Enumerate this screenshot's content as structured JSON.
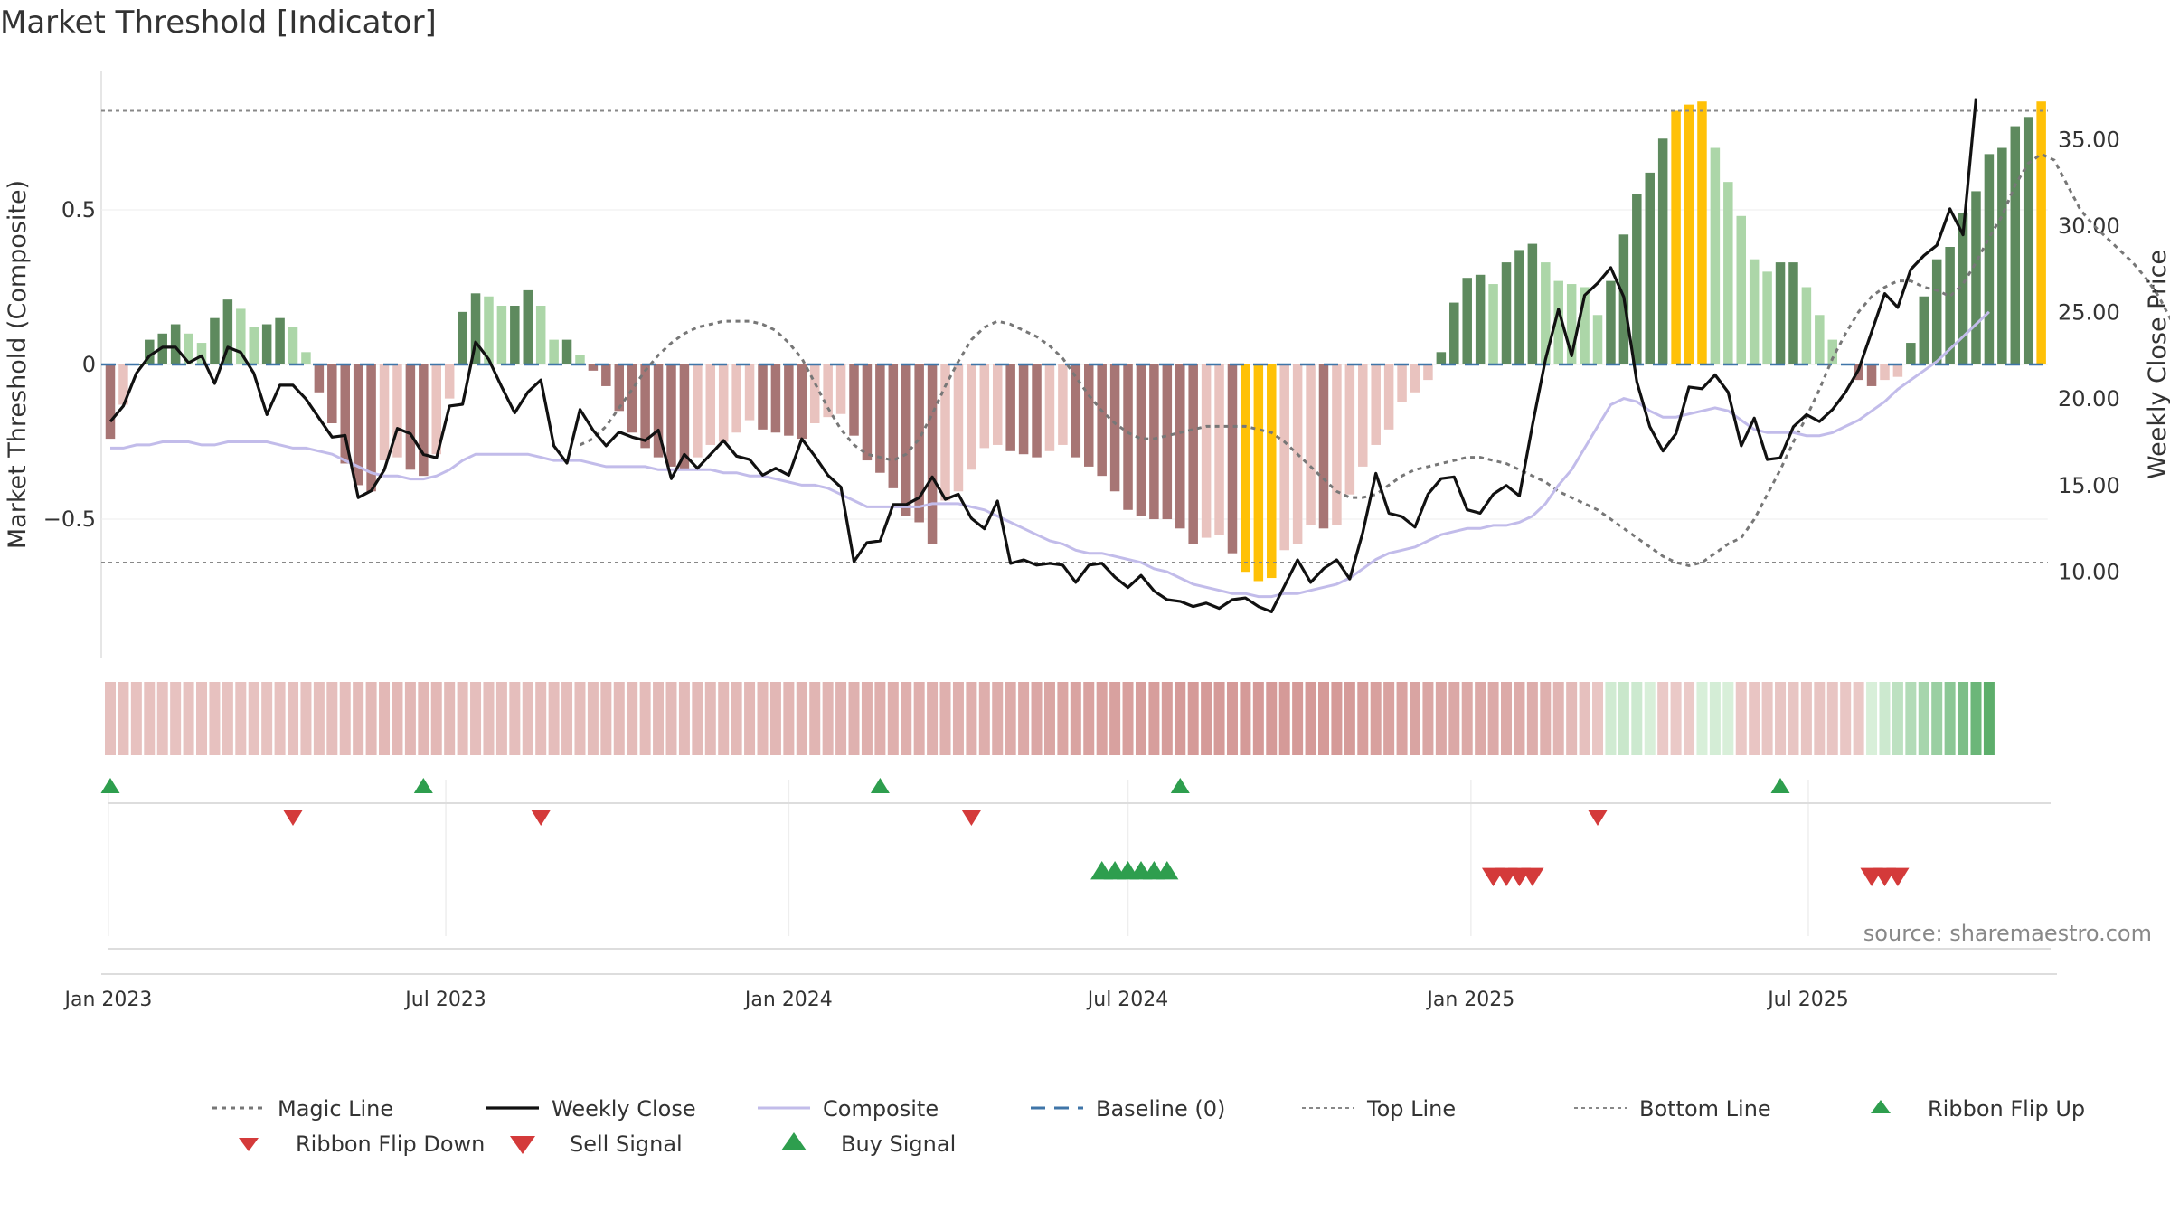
{
  "chart_data": {
    "type": "bar",
    "title": "Market Threshold [Indicator]",
    "ylabel_left": "Market Threshold (Composite)",
    "ylabel_right": "Weekly Close Price",
    "source": "source: sharemaestro.com",
    "ylim_left": [
      -0.95,
      0.95
    ],
    "ylim_right": [
      5.0,
      39.0
    ],
    "yticks_left": [
      {
        "v": 0.5,
        "label": "0.5"
      },
      {
        "v": 0,
        "label": "0"
      },
      {
        "v": -0.5,
        "label": "−0.5"
      }
    ],
    "yticks_right": [
      {
        "v": 35,
        "label": "35.00"
      },
      {
        "v": 30,
        "label": "30.00"
      },
      {
        "v": 25,
        "label": "25.00"
      },
      {
        "v": 20,
        "label": "20.00"
      },
      {
        "v": 15,
        "label": "15.00"
      },
      {
        "v": 10,
        "label": "10.00"
      }
    ],
    "x_dates": [
      "2023-01-02",
      "2023-01-09",
      "2023-01-16",
      "2023-01-23",
      "2023-01-30",
      "2023-02-06",
      "2023-02-13",
      "2023-02-20",
      "2023-02-27",
      "2023-03-06",
      "2023-03-13",
      "2023-03-20",
      "2023-03-27",
      "2023-04-03",
      "2023-04-10",
      "2023-04-17",
      "2023-04-24",
      "2023-05-01",
      "2023-05-08",
      "2023-05-15",
      "2023-05-22",
      "2023-05-29",
      "2023-06-05",
      "2023-06-12",
      "2023-06-19",
      "2023-06-26",
      "2023-07-03",
      "2023-07-10",
      "2023-07-17",
      "2023-07-24",
      "2023-07-31",
      "2023-08-07",
      "2023-08-14",
      "2023-08-21",
      "2023-08-28",
      "2023-09-04",
      "2023-09-11",
      "2023-09-18",
      "2023-09-25",
      "2023-10-02",
      "2023-10-09",
      "2023-10-16",
      "2023-10-23",
      "2023-10-30",
      "2023-11-06",
      "2023-11-13",
      "2023-11-20",
      "2023-11-27",
      "2023-12-04",
      "2023-12-11",
      "2023-12-18",
      "2023-12-25",
      "2024-01-01",
      "2024-01-08",
      "2024-01-15",
      "2024-01-22",
      "2024-01-29",
      "2024-02-05",
      "2024-02-12",
      "2024-02-19",
      "2024-02-26",
      "2024-03-04",
      "2024-03-11",
      "2024-03-18",
      "2024-03-25",
      "2024-04-01",
      "2024-04-08",
      "2024-04-15",
      "2024-04-22",
      "2024-04-29",
      "2024-05-06",
      "2024-05-13",
      "2024-05-20",
      "2024-05-27",
      "2024-06-03",
      "2024-06-10",
      "2024-06-17",
      "2024-06-24",
      "2024-07-01",
      "2024-07-08",
      "2024-07-15",
      "2024-07-22",
      "2024-07-29",
      "2024-08-05",
      "2024-08-12",
      "2024-08-19",
      "2024-08-26",
      "2024-09-02",
      "2024-09-09",
      "2024-09-16",
      "2024-09-23",
      "2024-09-30",
      "2024-10-07",
      "2024-10-14",
      "2024-10-21",
      "2024-10-28",
      "2024-11-04",
      "2024-11-11",
      "2024-11-18",
      "2024-11-25",
      "2024-12-02",
      "2024-12-09",
      "2024-12-16",
      "2024-12-23",
      "2024-12-30",
      "2025-01-06",
      "2025-01-13",
      "2025-01-20",
      "2025-01-27",
      "2025-02-03",
      "2025-02-10",
      "2025-02-17",
      "2025-02-24",
      "2025-03-03",
      "2025-03-10",
      "2025-03-17",
      "2025-03-24",
      "2025-03-31",
      "2025-04-07",
      "2025-04-14",
      "2025-04-21",
      "2025-04-28",
      "2025-05-05",
      "2025-05-12",
      "2025-05-19",
      "2025-05-26",
      "2025-06-02",
      "2025-06-09",
      "2025-06-16",
      "2025-06-23",
      "2025-06-30",
      "2025-07-07",
      "2025-07-14",
      "2025-07-21",
      "2025-07-28",
      "2025-08-04",
      "2025-08-11",
      "2025-08-18",
      "2025-08-25",
      "2025-09-01",
      "2025-09-08",
      "2025-09-15",
      "2025-09-22",
      "2025-09-29"
    ],
    "x_ticks": [
      {
        "date": "2023-01-01",
        "label": "Jan 2023"
      },
      {
        "date": "2023-07-01",
        "label": "Jul 2023"
      },
      {
        "date": "2024-01-01",
        "label": "Jan 2024"
      },
      {
        "date": "2024-07-01",
        "label": "Jul 2024"
      },
      {
        "date": "2025-01-01",
        "label": "Jan 2025"
      },
      {
        "date": "2025-07-01",
        "label": "Jul 2025"
      }
    ],
    "composite_bars": [
      -0.24,
      -0.13,
      0.0,
      0.08,
      0.1,
      0.13,
      0.1,
      0.07,
      0.15,
      0.21,
      0.18,
      0.12,
      0.13,
      0.15,
      0.12,
      0.04,
      -0.09,
      -0.19,
      -0.32,
      -0.39,
      -0.41,
      -0.31,
      -0.3,
      -0.34,
      -0.36,
      -0.29,
      -0.11,
      0.17,
      0.23,
      0.22,
      0.19,
      0.19,
      0.24,
      0.19,
      0.08,
      0.08,
      0.03,
      -0.02,
      -0.07,
      -0.15,
      -0.22,
      -0.27,
      -0.3,
      -0.33,
      -0.34,
      -0.3,
      -0.26,
      -0.25,
      -0.22,
      -0.18,
      -0.21,
      -0.22,
      -0.23,
      -0.24,
      -0.19,
      -0.17,
      -0.16,
      -0.23,
      -0.31,
      -0.35,
      -0.4,
      -0.49,
      -0.51,
      -0.58,
      -0.44,
      -0.41,
      -0.34,
      -0.27,
      -0.26,
      -0.28,
      -0.29,
      -0.3,
      -0.28,
      -0.26,
      -0.3,
      -0.33,
      -0.36,
      -0.41,
      -0.47,
      -0.49,
      -0.5,
      -0.5,
      -0.53,
      -0.58,
      -0.56,
      -0.55,
      -0.61,
      -0.67,
      -0.7,
      -0.69,
      -0.6,
      -0.58,
      -0.52,
      -0.53,
      -0.52,
      -0.42,
      -0.33,
      -0.26,
      -0.21,
      -0.12,
      -0.09,
      -0.05,
      0.04,
      0.2,
      0.28,
      0.29,
      0.26,
      0.33,
      0.37,
      0.39,
      0.33,
      0.27,
      0.26,
      0.25,
      0.16,
      0.27,
      0.42,
      0.55,
      0.62,
      0.73,
      0.82,
      0.84,
      0.85,
      0.7,
      0.59,
      0.48,
      0.34,
      0.3,
      0.33,
      0.33,
      0.25,
      0.16,
      0.08,
      0.0,
      -0.05,
      -0.07,
      -0.05,
      -0.04,
      0.07,
      0.22,
      0.34,
      0.38,
      0.49,
      0.56,
      0.68,
      0.7,
      0.77,
      0.8,
      0.85
    ],
    "weekly_close": [
      18.7,
      19.6,
      21.5,
      22.5,
      23.0,
      23.0,
      22.1,
      22.5,
      20.9,
      23.0,
      22.7,
      21.5,
      19.1,
      20.8,
      20.8,
      20.0,
      18.9,
      17.8,
      17.9,
      14.3,
      14.7,
      15.9,
      18.3,
      18.0,
      16.8,
      16.6,
      19.6,
      19.7,
      23.3,
      22.3,
      20.7,
      19.2,
      20.4,
      21.1,
      17.3,
      16.3,
      19.4,
      18.2,
      17.3,
      18.1,
      17.8,
      17.6,
      18.2,
      15.4,
      16.8,
      16.0,
      16.8,
      17.6,
      16.7,
      16.5,
      15.6,
      16.0,
      15.6,
      17.7,
      16.7,
      15.6,
      14.9,
      10.6,
      11.7,
      11.8,
      13.9,
      13.9,
      14.3,
      15.5,
      14.2,
      14.5,
      13.1,
      12.5,
      14.1,
      10.5,
      10.7,
      10.4,
      10.5,
      10.4,
      9.4,
      10.4,
      10.5,
      9.7,
      9.1,
      9.8,
      8.9,
      8.4,
      8.3,
      8.0,
      8.2,
      7.9,
      8.4,
      8.5,
      8.0,
      7.7,
      9.2,
      10.7,
      9.4,
      10.2,
      10.7,
      9.6,
      12.3,
      15.7,
      13.4,
      13.2,
      12.6,
      14.5,
      15.4,
      15.5,
      13.6,
      13.4,
      14.5,
      15.0,
      14.4,
      18.5,
      22.3,
      25.2,
      22.5,
      26.0,
      26.7,
      27.6,
      25.9,
      21.0,
      18.4,
      17.0,
      18.0,
      20.7,
      20.6,
      21.4,
      20.4,
      17.3,
      18.9,
      16.5,
      16.6,
      18.4,
      19.1,
      18.7,
      19.4,
      20.4,
      21.7,
      23.9,
      26.1,
      25.3,
      27.5,
      28.3,
      28.9,
      31.0,
      29.5,
      37.4
    ],
    "composite_line": [
      -0.27,
      -0.27,
      -0.26,
      -0.26,
      -0.25,
      -0.25,
      -0.25,
      -0.26,
      -0.26,
      -0.25,
      -0.25,
      -0.25,
      -0.25,
      -0.26,
      -0.27,
      -0.27,
      -0.28,
      -0.29,
      -0.31,
      -0.33,
      -0.35,
      -0.36,
      -0.36,
      -0.37,
      -0.37,
      -0.36,
      -0.34,
      -0.31,
      -0.29,
      -0.29,
      -0.29,
      -0.29,
      -0.29,
      -0.3,
      -0.31,
      -0.31,
      -0.31,
      -0.32,
      -0.33,
      -0.33,
      -0.33,
      -0.33,
      -0.34,
      -0.34,
      -0.34,
      -0.34,
      -0.34,
      -0.35,
      -0.35,
      -0.36,
      -0.36,
      -0.37,
      -0.38,
      -0.39,
      -0.39,
      -0.4,
      -0.42,
      -0.44,
      -0.46,
      -0.46,
      -0.46,
      -0.46,
      -0.46,
      -0.45,
      -0.45,
      -0.45,
      -0.46,
      -0.47,
      -0.49,
      -0.51,
      -0.53,
      -0.55,
      -0.57,
      -0.58,
      -0.6,
      -0.61,
      -0.61,
      -0.62,
      -0.63,
      -0.64,
      -0.66,
      -0.67,
      -0.69,
      -0.71,
      -0.72,
      -0.73,
      -0.74,
      -0.74,
      -0.75,
      -0.75,
      -0.74,
      -0.74,
      -0.73,
      -0.72,
      -0.71,
      -0.69,
      -0.66,
      -0.63,
      -0.61,
      -0.6,
      -0.59,
      -0.57,
      -0.55,
      -0.54,
      -0.53,
      -0.53,
      -0.52,
      -0.52,
      -0.51,
      -0.49,
      -0.45,
      -0.39,
      -0.34,
      -0.27,
      -0.2,
      -0.13,
      -0.11,
      -0.12,
      -0.15,
      -0.17,
      -0.17,
      -0.16,
      -0.15,
      -0.14,
      -0.15,
      -0.18,
      -0.21,
      -0.22,
      -0.22,
      -0.22,
      -0.23,
      -0.23,
      -0.22,
      -0.2,
      -0.18,
      -0.15,
      -0.12,
      -0.08,
      -0.05,
      -0.02,
      0.01,
      0.05,
      0.09,
      0.13,
      0.17
    ],
    "magic_line": [
      -0.26,
      -0.24,
      -0.2,
      -0.14,
      -0.08,
      -0.02,
      0.03,
      0.07,
      0.1,
      0.12,
      0.13,
      0.14,
      0.14,
      0.14,
      0.13,
      0.11,
      0.07,
      0.02,
      -0.06,
      -0.14,
      -0.21,
      -0.26,
      -0.29,
      -0.3,
      -0.31,
      -0.29,
      -0.24,
      -0.16,
      -0.07,
      0.01,
      0.08,
      0.12,
      0.14,
      0.13,
      0.11,
      0.09,
      0.06,
      0.02,
      -0.04,
      -0.1,
      -0.15,
      -0.19,
      -0.22,
      -0.24,
      -0.24,
      -0.23,
      -0.22,
      -0.21,
      -0.2,
      -0.2,
      -0.2,
      -0.2,
      -0.21,
      -0.22,
      -0.25,
      -0.29,
      -0.33,
      -0.37,
      -0.41,
      -0.43,
      -0.43,
      -0.42,
      -0.39,
      -0.36,
      -0.34,
      -0.33,
      -0.32,
      -0.31,
      -0.3,
      -0.3,
      -0.31,
      -0.32,
      -0.34,
      -0.36,
      -0.38,
      -0.41,
      -0.43,
      -0.45,
      -0.47,
      -0.5,
      -0.53,
      -0.56,
      -0.59,
      -0.62,
      -0.64,
      -0.65,
      -0.64,
      -0.61,
      -0.58,
      -0.56,
      -0.5,
      -0.42,
      -0.34,
      -0.25,
      -0.17,
      -0.08,
      0.02,
      0.1,
      0.17,
      0.22,
      0.25,
      0.27,
      0.27,
      0.25,
      0.24,
      0.22,
      0.26,
      0.33,
      0.41,
      0.48,
      0.58,
      0.65,
      0.68,
      0.66,
      0.58,
      0.5,
      0.45,
      0.41,
      0.37,
      0.33,
      0.28,
      0.22,
      0.14,
      0.07,
      0.03,
      0.02,
      0.04,
      0.09,
      0.17,
      0.25,
      0.33,
      0.42,
      0.49,
      0.56,
      0.63
    ],
    "magic_line_start": 36,
    "top_line": 0.82,
    "bottom_line": -0.64,
    "baseline": 0,
    "colors": {
      "bar_green_dark": "#5e8a5e",
      "bar_green_light": "#acd6a8",
      "bar_red_dark": "#a77574",
      "bar_red_light": "#e9c3bf",
      "bar_highlight": "#ffc107",
      "weekly_close": "#111111",
      "composite_line": "#c2bcea",
      "magic_line": "#777777",
      "baseline": "#3f75a8",
      "threshold_lines": "#888888",
      "signal_up": "#2e9e4e",
      "signal_down": "#d43a3a"
    },
    "ribbon_flip_up_weeks": [
      0,
      24,
      59,
      82,
      128
    ],
    "ribbon_flip_down_weeks": [
      14,
      33,
      66,
      114
    ],
    "buy_signal_weeks": [
      76,
      77,
      78,
      79,
      80,
      81
    ],
    "sell_signal_weeks": [
      106,
      107,
      108,
      109,
      135,
      136,
      137
    ],
    "legend": [
      {
        "label": "Magic Line",
        "style": "dotted"
      },
      {
        "label": "Weekly Close",
        "style": "solid-black"
      },
      {
        "label": "Composite",
        "style": "solid-lavender"
      },
      {
        "label": "Baseline (0)",
        "style": "dashed-blue"
      },
      {
        "label": "Top Line",
        "style": "dotted-gray"
      },
      {
        "label": "Bottom Line",
        "style": "dotted-gray"
      },
      {
        "label": "Ribbon Flip Up",
        "style": "triangle-up-green"
      },
      {
        "label": "Ribbon Flip Down",
        "style": "triangle-down-red"
      },
      {
        "label": "Sell Signal",
        "style": "triangle-down-red-large"
      },
      {
        "label": "Buy Signal",
        "style": "triangle-up-green-large"
      }
    ]
  }
}
